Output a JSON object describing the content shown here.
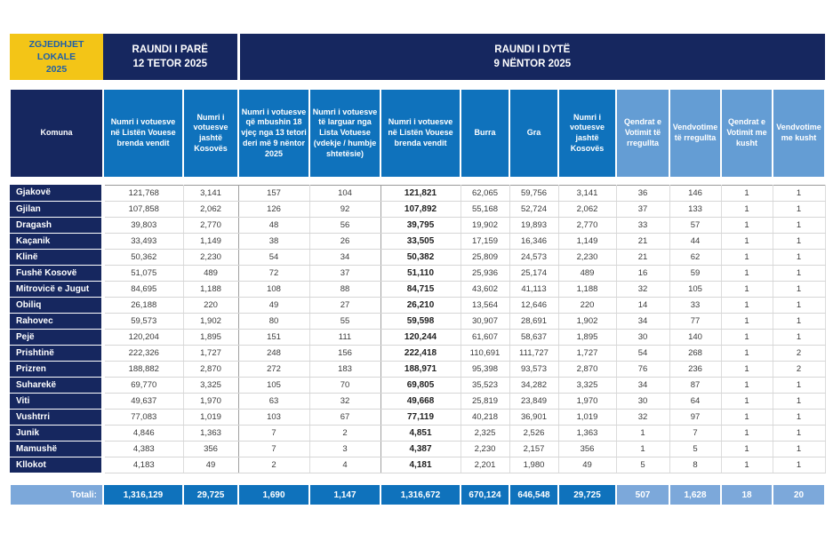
{
  "banner": {
    "logo": {
      "line1": "ZGJEDHJET",
      "line2": "LOKALE",
      "line3": "2025"
    },
    "round1": {
      "line1": "RAUNDI I PARË",
      "line2": "12 TETOR 2025"
    },
    "round2": {
      "line1": "RAUNDI I DYTË",
      "line2": "9 NËNTOR 2025"
    }
  },
  "colors": {
    "navy": "#16275F",
    "yellow": "#F3C517",
    "medium_blue": "#0F72BC",
    "light_blue_header": "#649DD4",
    "light_blue_totals": "#7CA8DA",
    "logo_text_blue": "#1E5FA9"
  },
  "chart_data": {
    "type": "table",
    "title": "Zgjedhjet Lokale 2025 — Raundi i Parë 12 Tetor 2025 / Raundi i Dytë 9 Nëntor 2025",
    "columns": [
      "Komuna",
      "Numri i votuesve në Listën Vouese brenda vendit",
      "Numri i votuesve jashtë Kosovës",
      "Numri i votuesve që mbushin 18 vjeç nga 13 tetori deri më 9 nëntor 2025",
      "Numri i votuesve të larguar nga Lista Votuese (vdekje / humbje shtetësie)",
      "Numri i votuesve në Listën Vouese brenda vendit",
      "Burra",
      "Gra",
      "Numri i votuesve jashtë Kosovës",
      "Qendrat e Votimit të rregullta",
      "Vendvotime të rregullta",
      "Qendrat e Votimit me kusht",
      "Vendvotime me kusht"
    ],
    "rows": [
      [
        "Gjakovë",
        "121,768",
        "3,141",
        "157",
        "104",
        "121,821",
        "62,065",
        "59,756",
        "3,141",
        "36",
        "146",
        "1",
        "1"
      ],
      [
        "Gjilan",
        "107,858",
        "2,062",
        "126",
        "92",
        "107,892",
        "55,168",
        "52,724",
        "2,062",
        "37",
        "133",
        "1",
        "1"
      ],
      [
        "Dragash",
        "39,803",
        "2,770",
        "48",
        "56",
        "39,795",
        "19,902",
        "19,893",
        "2,770",
        "33",
        "57",
        "1",
        "1"
      ],
      [
        "Kaçanik",
        "33,493",
        "1,149",
        "38",
        "26",
        "33,505",
        "17,159",
        "16,346",
        "1,149",
        "21",
        "44",
        "1",
        "1"
      ],
      [
        "Klinë",
        "50,362",
        "2,230",
        "54",
        "34",
        "50,382",
        "25,809",
        "24,573",
        "2,230",
        "21",
        "62",
        "1",
        "1"
      ],
      [
        "Fushë Kosovë",
        "51,075",
        "489",
        "72",
        "37",
        "51,110",
        "25,936",
        "25,174",
        "489",
        "16",
        "59",
        "1",
        "1"
      ],
      [
        "Mitrovicë e Jugut",
        "84,695",
        "1,188",
        "108",
        "88",
        "84,715",
        "43,602",
        "41,113",
        "1,188",
        "32",
        "105",
        "1",
        "1"
      ],
      [
        "Obiliq",
        "26,188",
        "220",
        "49",
        "27",
        "26,210",
        "13,564",
        "12,646",
        "220",
        "14",
        "33",
        "1",
        "1"
      ],
      [
        "Rahovec",
        "59,573",
        "1,902",
        "80",
        "55",
        "59,598",
        "30,907",
        "28,691",
        "1,902",
        "34",
        "77",
        "1",
        "1"
      ],
      [
        "Pejë",
        "120,204",
        "1,895",
        "151",
        "111",
        "120,244",
        "61,607",
        "58,637",
        "1,895",
        "30",
        "140",
        "1",
        "1"
      ],
      [
        "Prishtinë",
        "222,326",
        "1,727",
        "248",
        "156",
        "222,418",
        "110,691",
        "111,727",
        "1,727",
        "54",
        "268",
        "1",
        "2"
      ],
      [
        "Prizren",
        "188,882",
        "2,870",
        "272",
        "183",
        "188,971",
        "95,398",
        "93,573",
        "2,870",
        "76",
        "236",
        "1",
        "2"
      ],
      [
        "Suharekë",
        "69,770",
        "3,325",
        "105",
        "70",
        "69,805",
        "35,523",
        "34,282",
        "3,325",
        "34",
        "87",
        "1",
        "1"
      ],
      [
        "Viti",
        "49,637",
        "1,970",
        "63",
        "32",
        "49,668",
        "25,819",
        "23,849",
        "1,970",
        "30",
        "64",
        "1",
        "1"
      ],
      [
        "Vushtrri",
        "77,083",
        "1,019",
        "103",
        "67",
        "77,119",
        "40,218",
        "36,901",
        "1,019",
        "32",
        "97",
        "1",
        "1"
      ],
      [
        "Junik",
        "4,846",
        "1,363",
        "7",
        "2",
        "4,851",
        "2,325",
        "2,526",
        "1,363",
        "1",
        "7",
        "1",
        "1"
      ],
      [
        "Mamushë",
        "4,383",
        "356",
        "7",
        "3",
        "4,387",
        "2,230",
        "2,157",
        "356",
        "1",
        "5",
        "1",
        "1"
      ],
      [
        "Kllokot",
        "4,183",
        "49",
        "2",
        "4",
        "4,181",
        "2,201",
        "1,980",
        "49",
        "5",
        "8",
        "1",
        "1"
      ]
    ],
    "totals": [
      "Totali:",
      "1,316,129",
      "29,725",
      "1,690",
      "1,147",
      "1,316,672",
      "670,124",
      "646,548",
      "29,725",
      "507",
      "1,628",
      "18",
      "20"
    ]
  }
}
